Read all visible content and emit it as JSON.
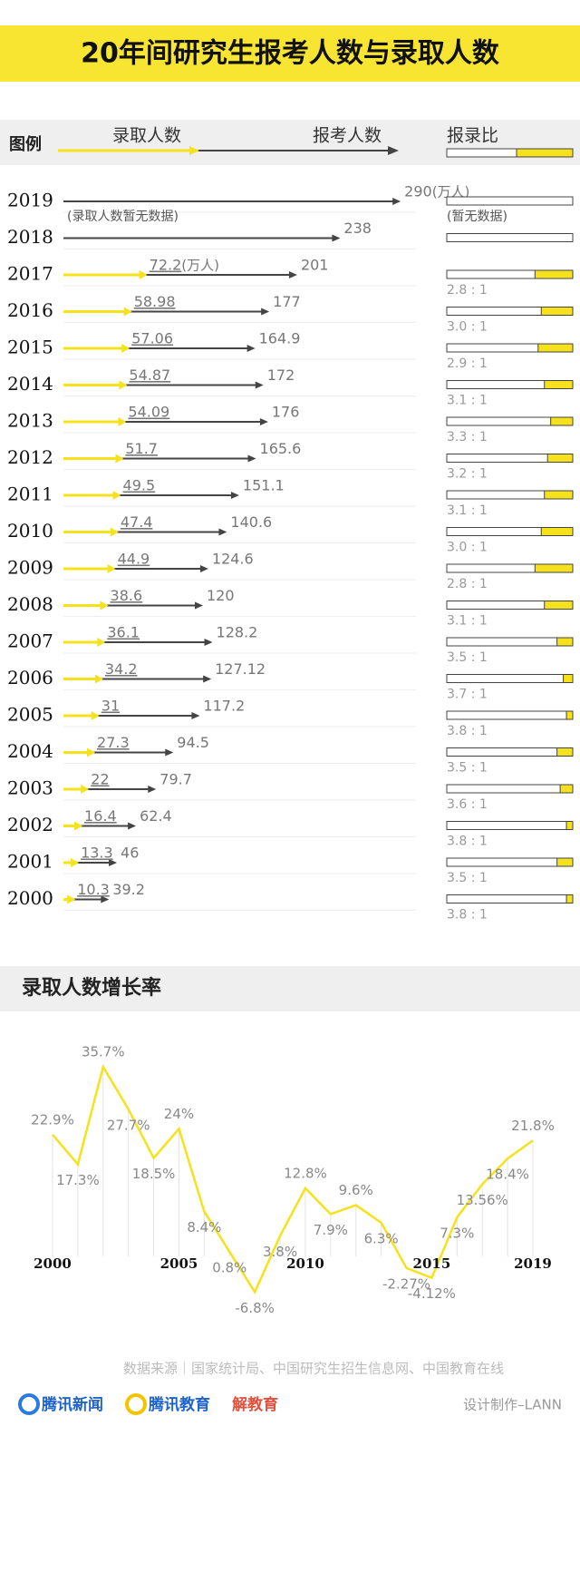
{
  "title": "20年间研究生报考人数与录取人数",
  "chart_data": [
    {
      "type": "arrow",
      "legend_title": "图例",
      "ratio_title": "报录比",
      "unit_label": "(万人)",
      "note": "(录取人数暂无数据)",
      "ratio_note": "(暂无数据)",
      "categories": [
        "2019",
        "2018",
        "2017",
        "2016",
        "2015",
        "2014",
        "2013",
        "2012",
        "2011",
        "2010",
        "2009",
        "2008",
        "2007",
        "2006",
        "2005",
        "2004",
        "2003",
        "2002",
        "2001",
        "2000"
      ],
      "series": [
        {
          "name": "录取人数",
          "color": "#f5e21c",
          "values": [
            null,
            null,
            72.2,
            58.98,
            57.06,
            54.87,
            54.09,
            51.7,
            49.5,
            47.4,
            44.9,
            38.6,
            36.1,
            34.2,
            31,
            27.3,
            22,
            16.4,
            13.3,
            10.3
          ]
        },
        {
          "name": "报考人数",
          "color": "#444444",
          "values": [
            290,
            238,
            201,
            177,
            164.9,
            172,
            176,
            165.6,
            151.1,
            140.6,
            124.6,
            120,
            128.2,
            127.12,
            117.2,
            94.5,
            79.7,
            62.4,
            46,
            39.2
          ]
        }
      ],
      "xlim": [
        0,
        300
      ],
      "ratios": {
        "values": [
          null,
          null,
          2.8,
          3.0,
          2.9,
          3.1,
          3.3,
          3.2,
          3.1,
          3.0,
          2.8,
          3.1,
          3.5,
          3.7,
          3.8,
          3.5,
          3.6,
          3.8,
          3.5,
          3.8
        ],
        "value_labels": [
          null,
          null,
          "2.8 : 1",
          "3.0 : 1",
          "2.9 : 1",
          "3.1 : 1",
          "3.3 : 1",
          "3.2 : 1",
          "3.1 : 1",
          "3.0 : 1",
          "2.8 : 1",
          "3.1 : 1",
          "3.5 : 1",
          "3.7 : 1",
          "3.8 : 1",
          "3.5 : 1",
          "3.6 : 1",
          "3.8 : 1",
          "3.5 : 1",
          "3.8 : 1"
        ],
        "xlim": [
          0,
          4
        ],
        "color": "#f5e21c"
      }
    },
    {
      "type": "line",
      "title": "录取人数增长率",
      "color": "#f5e21c",
      "categories": [
        "2000",
        null,
        null,
        null,
        null,
        "2005",
        null,
        null,
        null,
        null,
        "2010",
        null,
        null,
        null,
        null,
        "2015",
        null,
        null,
        null,
        "2019"
      ],
      "values": [
        22.9,
        17.3,
        35.7,
        27.7,
        18.5,
        24,
        8.4,
        0.8,
        -6.8,
        3.8,
        12.8,
        7.9,
        9.6,
        6.3,
        -2.27,
        -4.12,
        7.3,
        13.56,
        18.4,
        21.8
      ],
      "value_labels": [
        "22.9%",
        "17.3%",
        "35.7%",
        "27.7%",
        "18.5%",
        "24%",
        "8.4%",
        "0.8%",
        "-6.8%",
        "3.8%",
        "12.8%",
        "7.9%",
        "9.6%",
        "6.3%",
        "-2.27%",
        "-4.12%",
        "7.3%",
        "13.56%",
        "18.4%",
        "21.8%"
      ],
      "ylim": [
        -10,
        40
      ]
    }
  ],
  "footer": {
    "source": "数据来源｜国家统计局、中国研究生招生信息网、中国教育在线",
    "logos": [
      "腾讯新闻",
      "腾讯教育",
      "解教育"
    ],
    "credit": "设计制作–LANN"
  }
}
